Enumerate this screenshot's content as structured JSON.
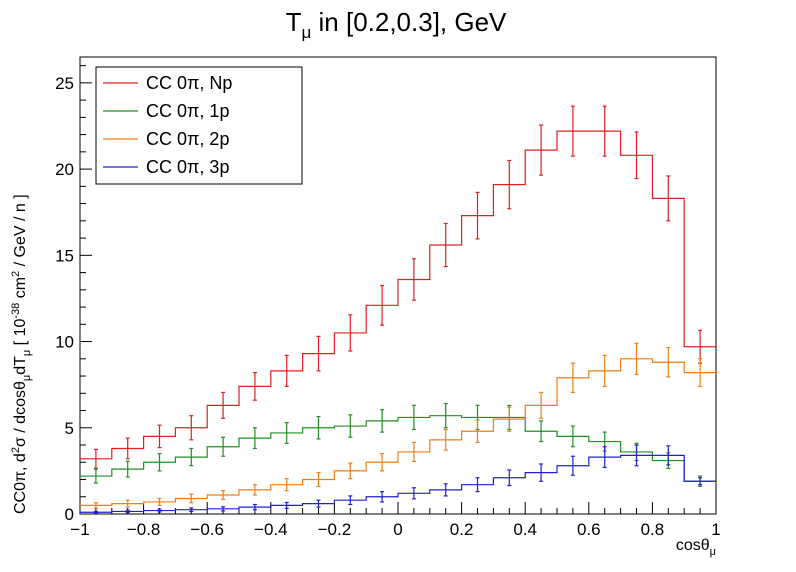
{
  "chart_data": {
    "type": "line",
    "title": "T",
    "title_sub": "μ",
    "title_rest": " in [0.2,0.3], GeV",
    "xlabel": "cosθ",
    "xlabel_sub": "μ",
    "ylabel_parts": [
      "CC0π, d",
      "2",
      "σ / dcosθ",
      "μ",
      "dT",
      "μ",
      " [ 10",
      "-38",
      " cm",
      "2",
      " / GeV / n ]"
    ],
    "xlim": [
      -1,
      1
    ],
    "ylim": [
      0,
      26.5
    ],
    "x_ticks": [
      -1,
      -0.8,
      -0.6,
      -0.4,
      -0.2,
      0,
      0.2,
      0.4,
      0.6,
      0.8,
      1
    ],
    "x_tick_labels": [
      "−1",
      "−0.8",
      "−0.6",
      "−0.4",
      "−0.2",
      "0",
      "0.2",
      "0.4",
      "0.6",
      "0.8",
      "1"
    ],
    "y_ticks": [
      0,
      5,
      10,
      15,
      20,
      25
    ],
    "y_tick_labels": [
      "0",
      "5",
      "10",
      "15",
      "20",
      "25"
    ],
    "legend_position": "top-left",
    "bin_edges": [
      -1,
      -0.9,
      -0.8,
      -0.7,
      -0.6,
      -0.5,
      -0.4,
      -0.3,
      -0.2,
      -0.1,
      0,
      0.1,
      0.2,
      0.3,
      0.4,
      0.5,
      0.6,
      0.7,
      0.8,
      0.9,
      1
    ],
    "series": [
      {
        "name": "CC 0π, Np",
        "color": "#e02020",
        "values": [
          3.2,
          3.8,
          4.5,
          5.0,
          6.3,
          7.4,
          8.3,
          9.3,
          10.5,
          12.1,
          13.6,
          15.6,
          17.3,
          19.1,
          21.1,
          22.2,
          22.2,
          20.8,
          18.3,
          9.7
        ],
        "errors": [
          0.55,
          0.6,
          0.65,
          0.7,
          0.75,
          0.8,
          0.9,
          1.0,
          1.05,
          1.15,
          1.2,
          1.25,
          1.35,
          1.4,
          1.45,
          1.45,
          1.45,
          1.35,
          1.3,
          0.95
        ]
      },
      {
        "name": "CC 0π, 1p",
        "color": "#209020",
        "values": [
          2.2,
          2.6,
          3.0,
          3.3,
          3.9,
          4.4,
          4.7,
          5.0,
          5.1,
          5.4,
          5.6,
          5.7,
          5.6,
          5.6,
          4.8,
          4.5,
          4.2,
          3.6,
          3.1,
          1.9
        ],
        "errors": [
          0.4,
          0.45,
          0.5,
          0.5,
          0.55,
          0.6,
          0.6,
          0.65,
          0.65,
          0.65,
          0.7,
          0.7,
          0.7,
          0.7,
          0.6,
          0.6,
          0.55,
          0.5,
          0.45,
          0.3
        ]
      },
      {
        "name": "CC 0π, 2p",
        "color": "#f07f10",
        "values": [
          0.5,
          0.6,
          0.7,
          0.9,
          1.1,
          1.4,
          1.7,
          2.0,
          2.5,
          3.0,
          3.6,
          4.3,
          4.8,
          5.5,
          6.3,
          7.9,
          8.3,
          9.0,
          8.8,
          8.2
        ],
        "errors": [
          0.15,
          0.2,
          0.2,
          0.25,
          0.25,
          0.3,
          0.35,
          0.4,
          0.45,
          0.5,
          0.55,
          0.6,
          0.65,
          0.7,
          0.75,
          0.85,
          0.9,
          0.9,
          0.85,
          0.8
        ]
      },
      {
        "name": "CC 0π, 3p",
        "color": "#2020d0",
        "values": [
          0.1,
          0.15,
          0.2,
          0.25,
          0.3,
          0.4,
          0.5,
          0.6,
          0.8,
          1.0,
          1.2,
          1.4,
          1.7,
          2.1,
          2.4,
          2.8,
          3.3,
          3.4,
          3.4,
          1.9
        ],
        "errors": [
          0.05,
          0.07,
          0.08,
          0.1,
          0.12,
          0.15,
          0.17,
          0.2,
          0.25,
          0.3,
          0.32,
          0.35,
          0.4,
          0.45,
          0.5,
          0.55,
          0.6,
          0.6,
          0.55,
          0.2
        ]
      }
    ]
  }
}
